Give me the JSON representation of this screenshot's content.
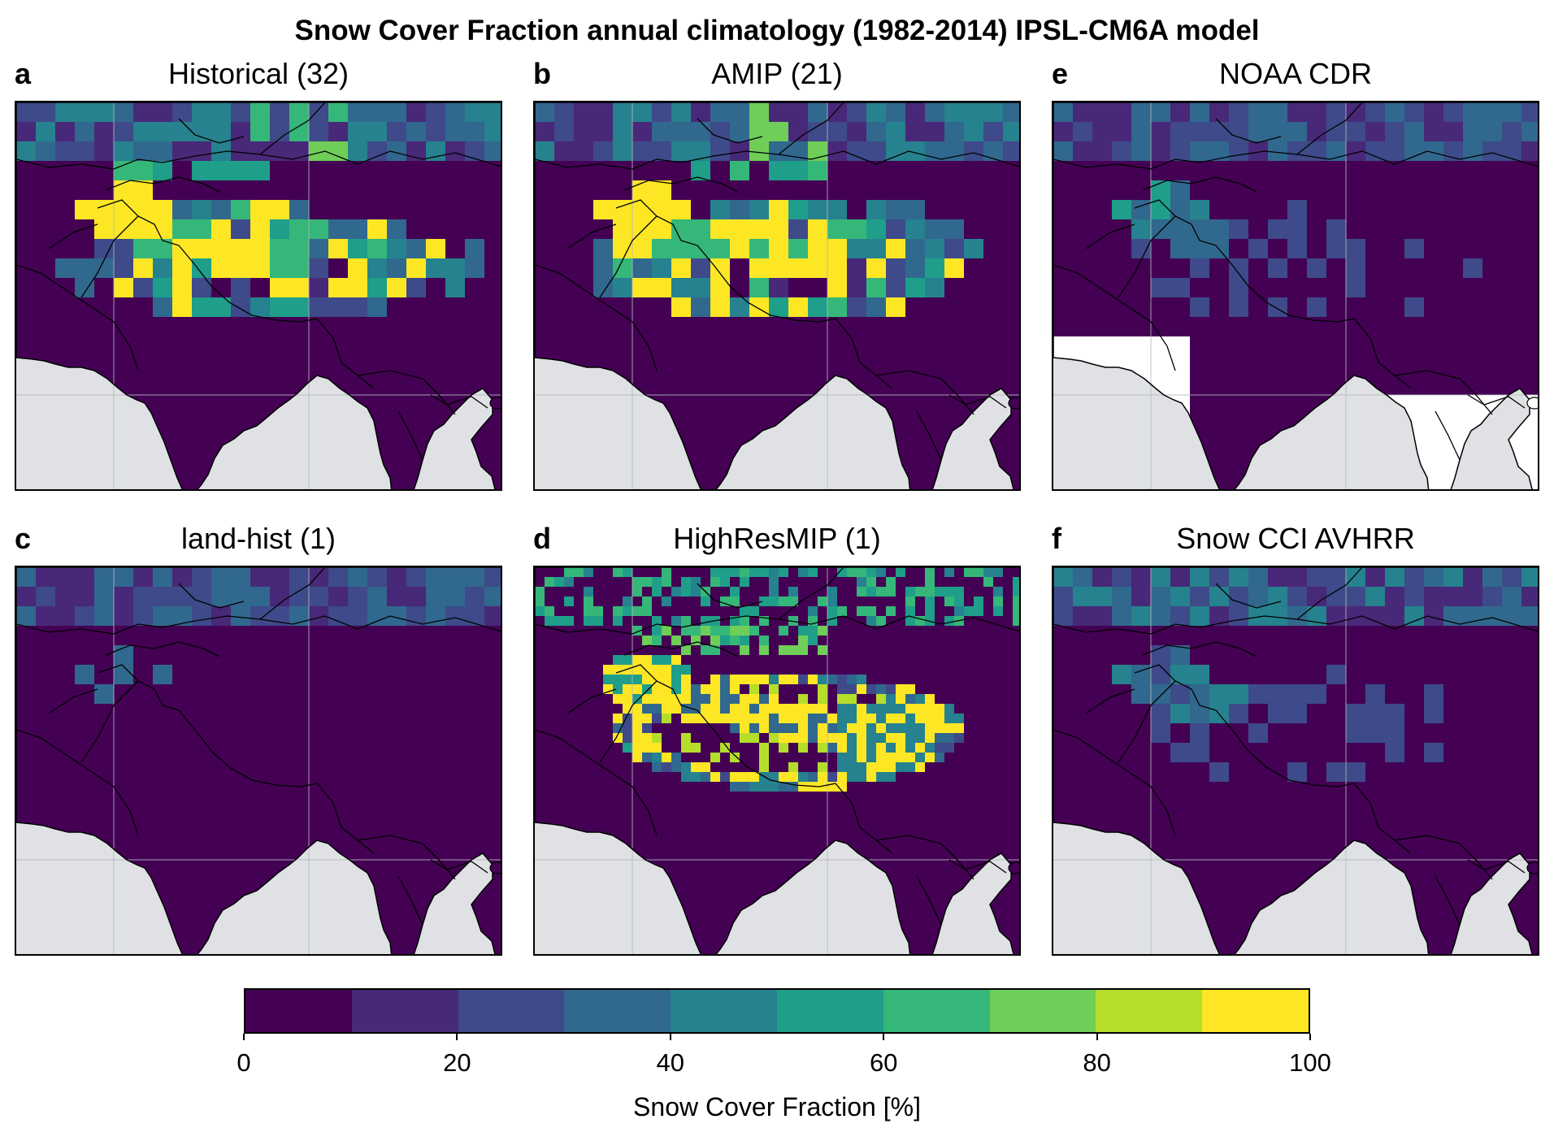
{
  "figure": {
    "title": "Snow Cover Fraction annual climatology (1982-2014) IPSL-CM6A model"
  },
  "panels": [
    {
      "letter": "a",
      "title": "Historical (32)",
      "pattern": "model"
    },
    {
      "letter": "b",
      "title": "AMIP (21)",
      "pattern": "amip"
    },
    {
      "letter": "e",
      "title": "NOAA CDR",
      "pattern": "noaa"
    },
    {
      "letter": "c",
      "title": "land-hist (1)",
      "pattern": "land"
    },
    {
      "letter": "d",
      "title": "HighResMIP (1)",
      "pattern": "highres"
    },
    {
      "letter": "f",
      "title": "Snow CCI AVHRR",
      "pattern": "cci"
    }
  ],
  "colorbar": {
    "label": "Snow Cover Fraction [%]",
    "ticks": [
      "0",
      "20",
      "40",
      "60",
      "80",
      "100"
    ],
    "range": [
      0,
      100
    ],
    "colors": [
      "#440154",
      "#482878",
      "#3e4a89",
      "#31688e",
      "#26828e",
      "#1f9e89",
      "#35b779",
      "#6ece58",
      "#b5de2b",
      "#fde725"
    ]
  },
  "colors": {
    "ocean": "#dfe1e4",
    "missing": "#ffffff",
    "gridline": "#b5b8bd"
  }
}
